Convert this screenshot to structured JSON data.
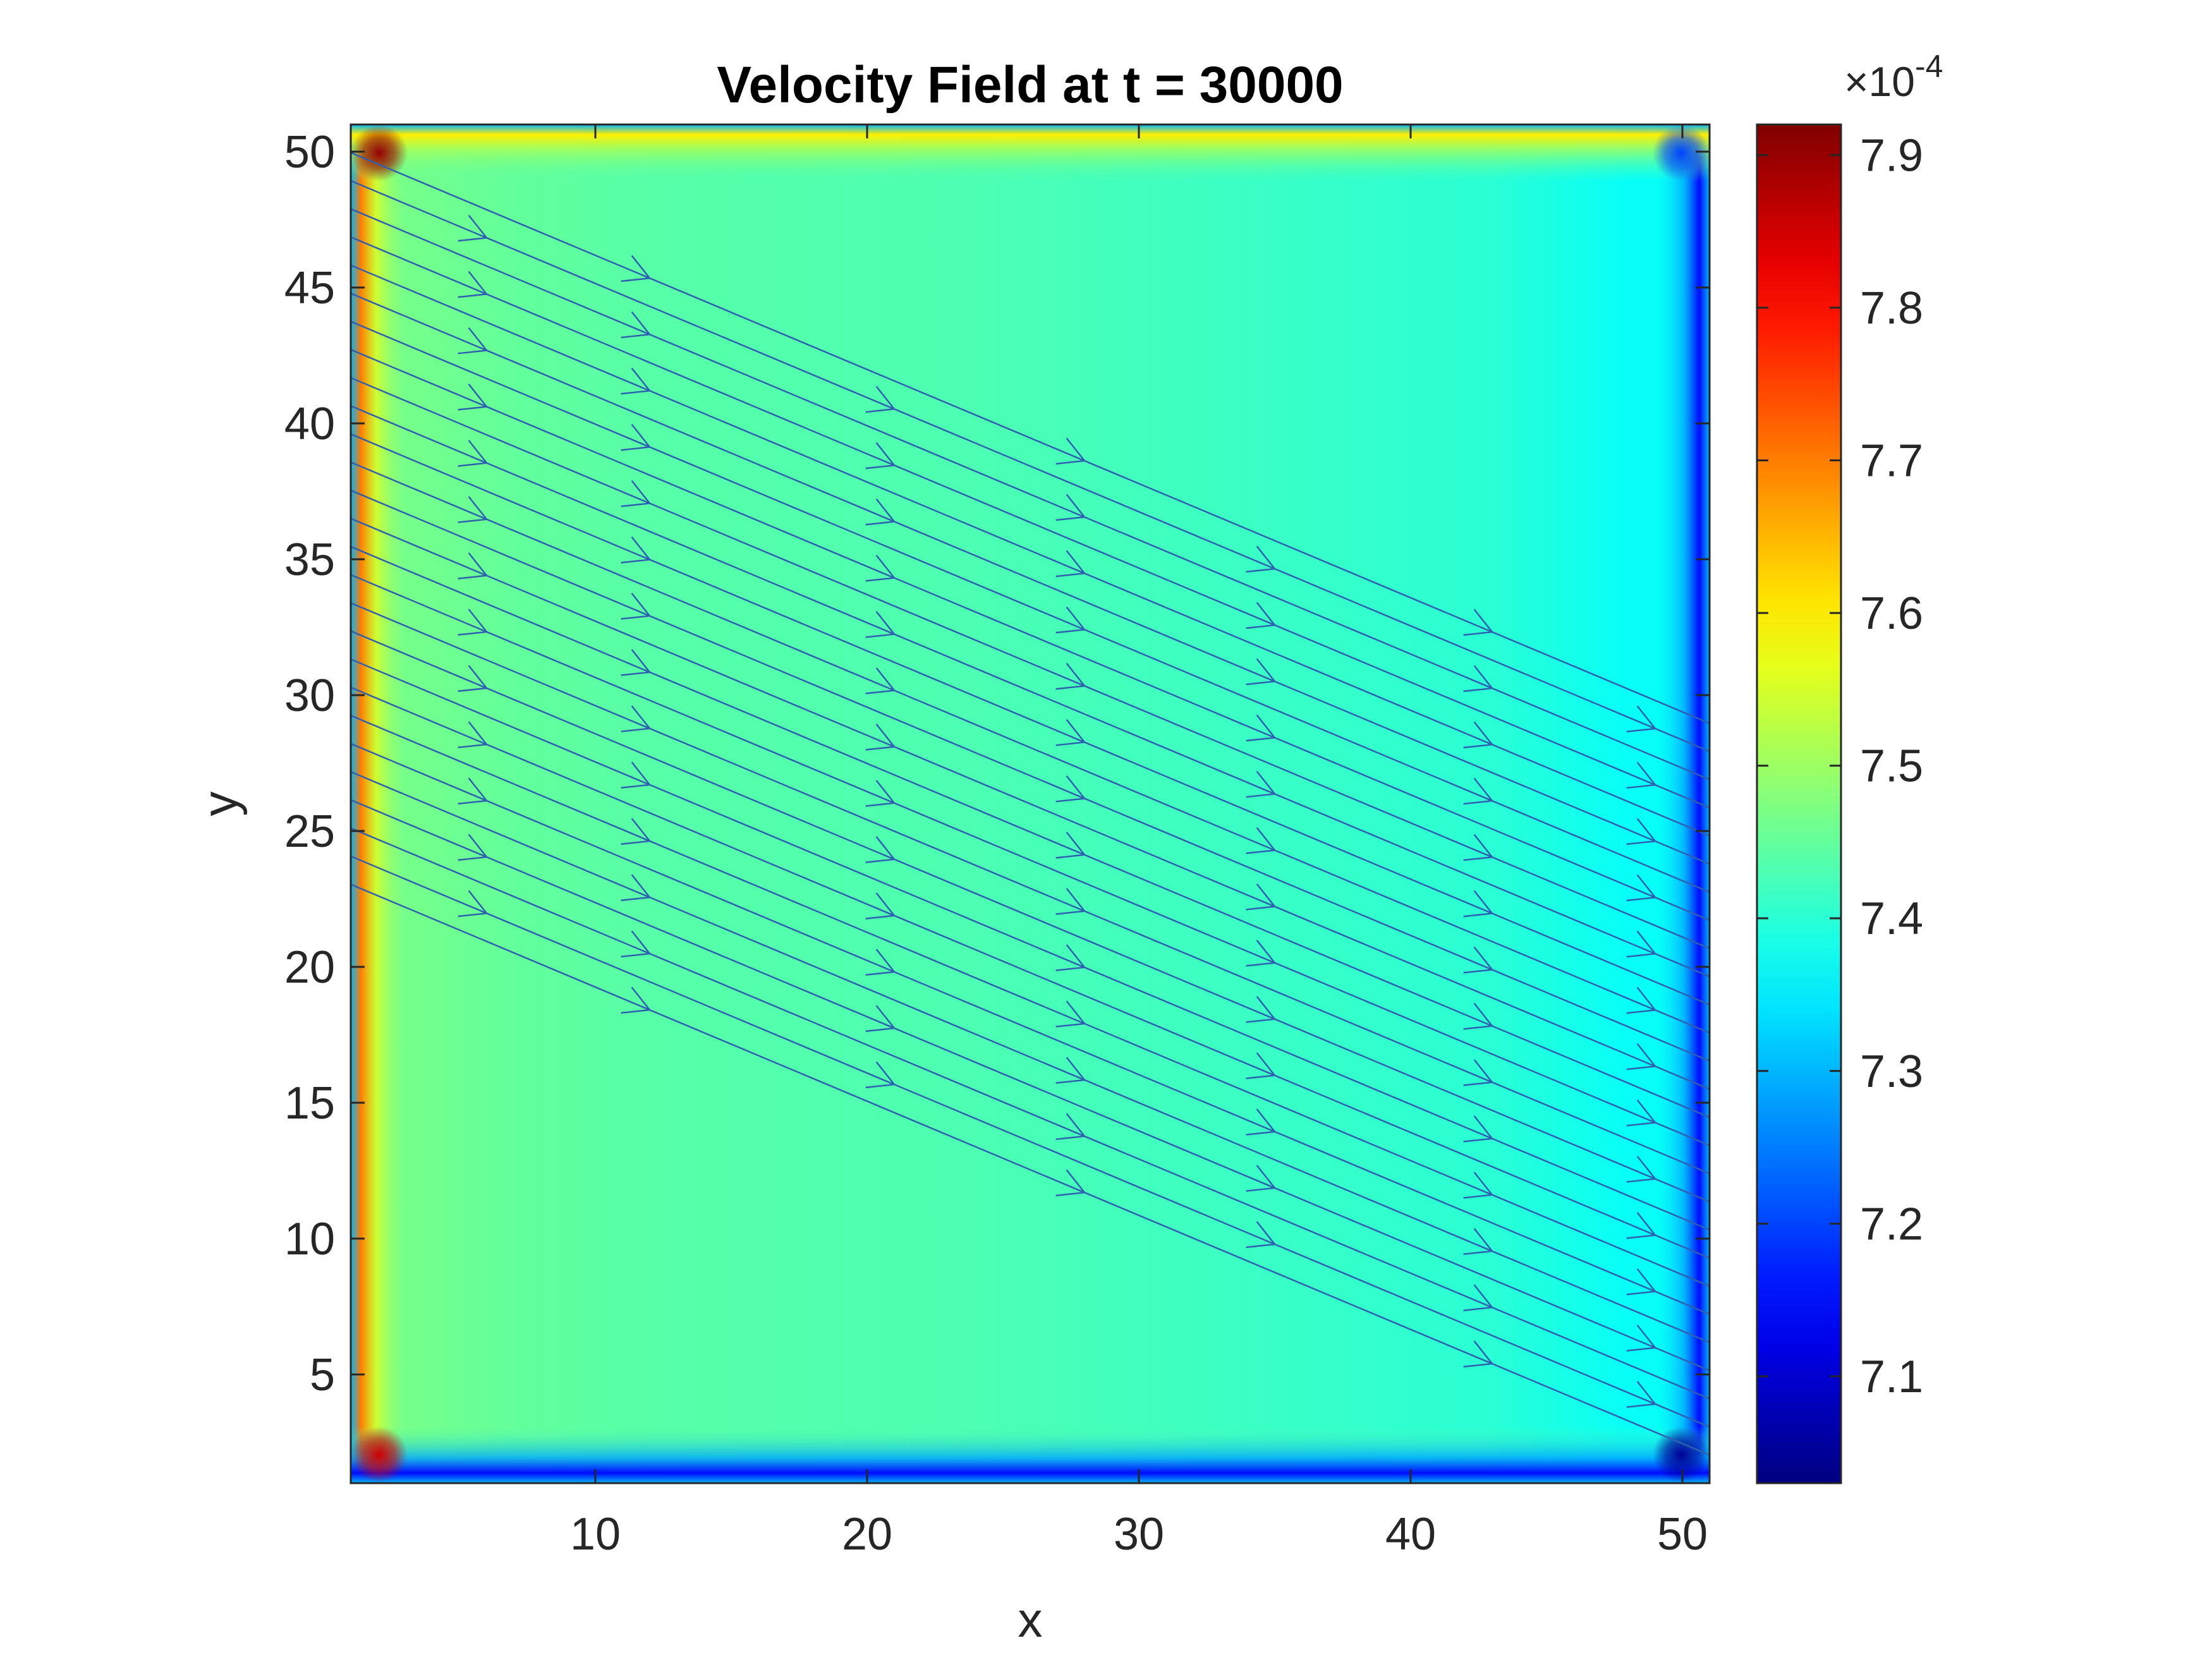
{
  "chart_data": {
    "type": "heatmap",
    "title": "Velocity Field at t = 30000",
    "xlabel": "x",
    "ylabel": "y",
    "xlim": [
      1,
      51
    ],
    "ylim": [
      1,
      51
    ],
    "x_ticks": [
      10,
      20,
      30,
      40,
      50
    ],
    "y_ticks": [
      5,
      10,
      15,
      20,
      25,
      30,
      35,
      40,
      45,
      50
    ],
    "colormap": "jet",
    "colorbar": {
      "multiplier": "×10",
      "exponent": "-4",
      "ticks": [
        7.1,
        7.2,
        7.3,
        7.4,
        7.5,
        7.6,
        7.7,
        7.8,
        7.9
      ],
      "tick_labels": [
        "7.1",
        "7.2",
        "7.3",
        "7.4",
        "7.5",
        "7.6",
        "7.7",
        "7.8",
        "7.9"
      ],
      "range": [
        7.03,
        7.92
      ]
    },
    "field": {
      "interior_gradient_x": [
        [
          2,
          7.47
        ],
        [
          7,
          7.45
        ],
        [
          12,
          7.44
        ],
        [
          24,
          7.43
        ],
        [
          43,
          7.4
        ],
        [
          48,
          7.37
        ]
      ],
      "left_wall_value": 7.7,
      "right_wall_value": 7.15,
      "top_wall_value": 7.6,
      "bottom_wall_value": 7.15,
      "corner_values": {
        "top_left": 7.9,
        "bottom_left": 7.85,
        "top_right": 7.2,
        "bottom_right": 7.05
      }
    },
    "streamlines": {
      "direction_dx_dy": [
        1,
        -0.42
      ],
      "count": 27,
      "color": "#2f5fb0"
    },
    "colors": {
      "axis": "#262626",
      "streamline": "#2f5fb0"
    }
  }
}
